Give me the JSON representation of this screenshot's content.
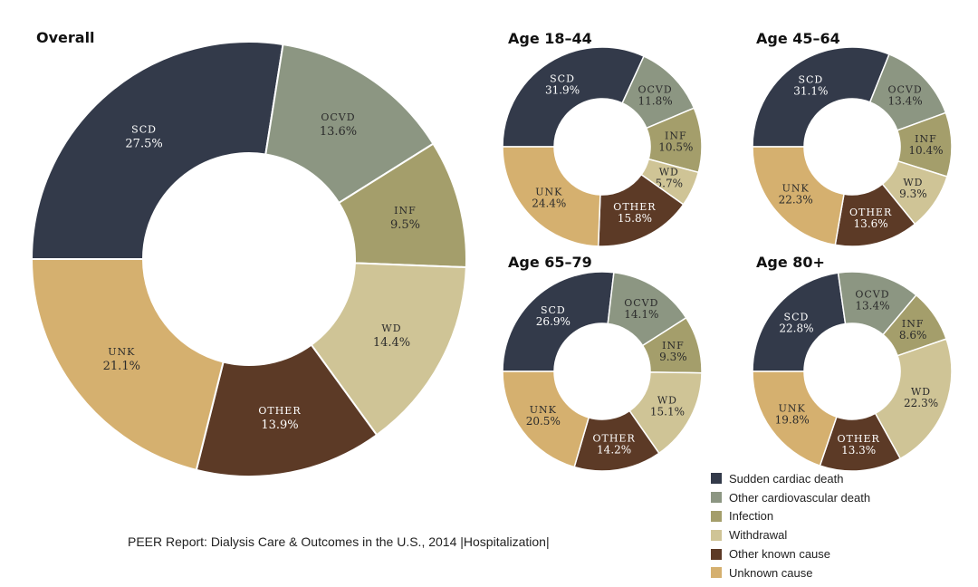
{
  "footer": "PEER Report: Dialysis Care & Outcomes in the U.S., 2014 |Hospitalization|",
  "colors": {
    "SCD": "#333a4a",
    "OCVD": "#8c9682",
    "INF": "#a49e6b",
    "WD": "#cfc496",
    "OTHER": "#5c3a26",
    "UNK": "#d5b06f"
  },
  "legend": [
    {
      "key": "SCD",
      "label": "Sudden cardiac death"
    },
    {
      "key": "OCVD",
      "label": "Other cardiovascular death"
    },
    {
      "key": "INF",
      "label": "Infection"
    },
    {
      "key": "WD",
      "label": "Withdrawal"
    },
    {
      "key": "OTHER",
      "label": "Other known cause"
    },
    {
      "key": "UNK",
      "label": "Unknown cause"
    }
  ],
  "chart_data": [
    {
      "type": "pie",
      "title": "Overall",
      "slices": [
        {
          "key": "SCD",
          "label": "SCD",
          "value": 27.5,
          "display": "27.5%"
        },
        {
          "key": "OCVD",
          "label": "OCVD",
          "value": 13.6,
          "display": "13.6%"
        },
        {
          "key": "INF",
          "label": "INF",
          "value": 9.5,
          "display": "9.5%"
        },
        {
          "key": "WD",
          "label": "WD",
          "value": 14.4,
          "display": "14.4%"
        },
        {
          "key": "OTHER",
          "label": "OTHER",
          "value": 13.9,
          "display": "13.9%"
        },
        {
          "key": "UNK",
          "label": "UNK",
          "value": 21.1,
          "display": "21.1%"
        }
      ]
    },
    {
      "type": "pie",
      "title": "Age 18–44",
      "slices": [
        {
          "key": "SCD",
          "label": "SCD",
          "value": 31.9,
          "display": "31.9%"
        },
        {
          "key": "OCVD",
          "label": "OCVD",
          "value": 11.8,
          "display": "11.8%"
        },
        {
          "key": "INF",
          "label": "INF",
          "value": 10.5,
          "display": "10.5%"
        },
        {
          "key": "WD",
          "label": "WD",
          "value": 5.7,
          "display": "5.7%"
        },
        {
          "key": "OTHER",
          "label": "OTHER",
          "value": 15.8,
          "display": "15.8%"
        },
        {
          "key": "UNK",
          "label": "UNK",
          "value": 24.4,
          "display": "24.4%"
        }
      ]
    },
    {
      "type": "pie",
      "title": "Age 45–64",
      "slices": [
        {
          "key": "SCD",
          "label": "SCD",
          "value": 31.1,
          "display": "31.1%"
        },
        {
          "key": "OCVD",
          "label": "OCVD",
          "value": 13.4,
          "display": "13.4%"
        },
        {
          "key": "INF",
          "label": "INF",
          "value": 10.4,
          "display": "10.4%"
        },
        {
          "key": "WD",
          "label": "WD",
          "value": 9.3,
          "display": "9.3%"
        },
        {
          "key": "OTHER",
          "label": "OTHER",
          "value": 13.6,
          "display": "13.6%"
        },
        {
          "key": "UNK",
          "label": "UNK",
          "value": 22.3,
          "display": "22.3%"
        }
      ]
    },
    {
      "type": "pie",
      "title": "Age 65–79",
      "slices": [
        {
          "key": "SCD",
          "label": "SCD",
          "value": 26.9,
          "display": "26.9%"
        },
        {
          "key": "OCVD",
          "label": "OCVD",
          "value": 14.1,
          "display": "14.1%"
        },
        {
          "key": "INF",
          "label": "INF",
          "value": 9.3,
          "display": "9.3%"
        },
        {
          "key": "WD",
          "label": "WD",
          "value": 15.1,
          "display": "15.1%"
        },
        {
          "key": "OTHER",
          "label": "OTHER",
          "value": 14.2,
          "display": "14.2%"
        },
        {
          "key": "UNK",
          "label": "UNK",
          "value": 20.5,
          "display": "20.5%"
        }
      ]
    },
    {
      "type": "pie",
      "title": "Age 80+",
      "slices": [
        {
          "key": "SCD",
          "label": "SCD",
          "value": 22.8,
          "display": "22.8%"
        },
        {
          "key": "OCVD",
          "label": "OCVD",
          "value": 13.4,
          "display": "13.4%"
        },
        {
          "key": "INF",
          "label": "INF",
          "value": 8.6,
          "display": "8.6%"
        },
        {
          "key": "WD",
          "label": "WD",
          "value": 22.3,
          "display": "22.3%"
        },
        {
          "key": "OTHER",
          "label": "OTHER",
          "value": 13.3,
          "display": "13.3%"
        },
        {
          "key": "UNK",
          "label": "UNK",
          "value": 19.8,
          "display": "19.8%"
        }
      ]
    }
  ]
}
